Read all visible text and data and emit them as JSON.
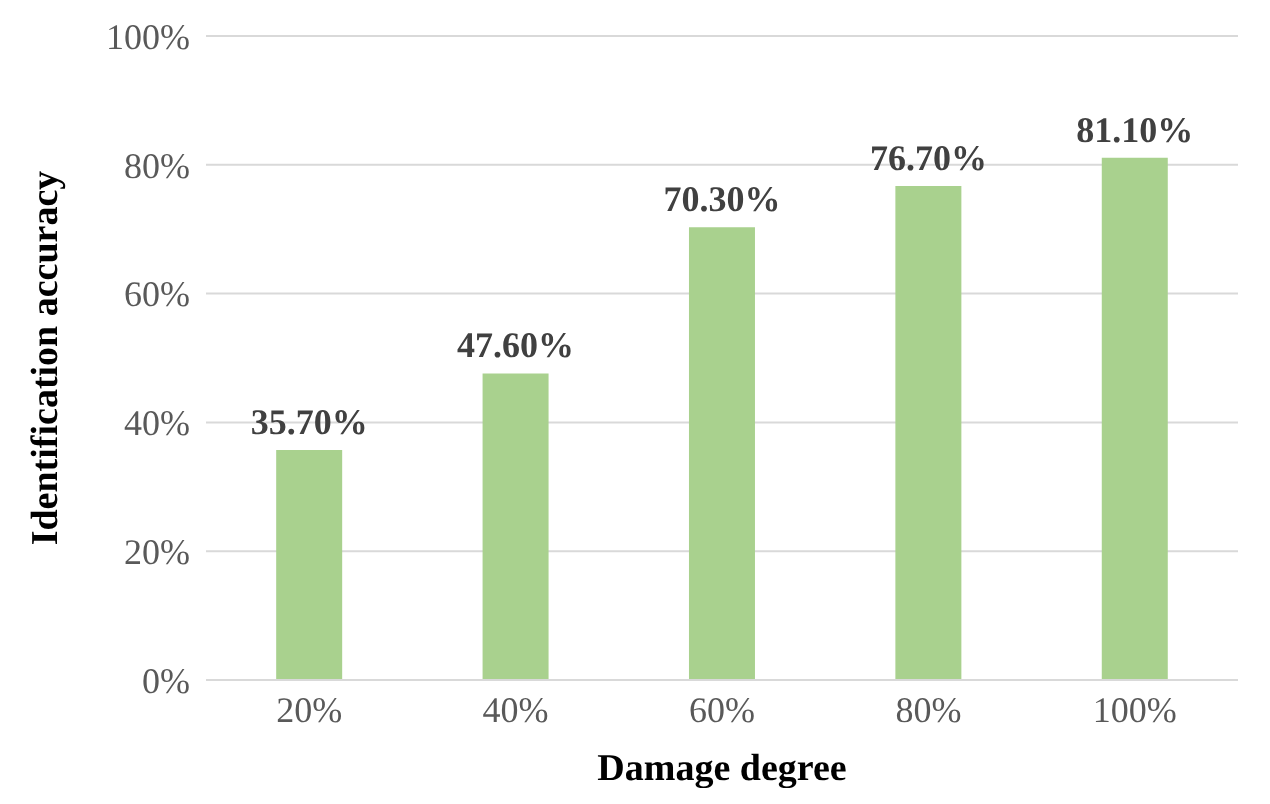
{
  "chart_data": {
    "type": "bar",
    "xlabel": "Damage degree",
    "ylabel": "Identification accuracy",
    "categories": [
      "20%",
      "40%",
      "60%",
      "80%",
      "100%"
    ],
    "values": [
      35.7,
      47.6,
      70.3,
      76.7,
      81.1
    ],
    "value_labels": [
      "35.70%",
      "47.60%",
      "70.30%",
      "76.70%",
      "81.10%"
    ],
    "color": "#a9d18e",
    "ylim": [
      0,
      100
    ],
    "yticks": [
      {
        "value": 0,
        "label": "0%"
      },
      {
        "value": 20,
        "label": "20%"
      },
      {
        "value": 40,
        "label": "40%"
      },
      {
        "value": 60,
        "label": "60%"
      },
      {
        "value": 80,
        "label": "80%"
      },
      {
        "value": 100,
        "label": "100%"
      }
    ],
    "grid": "y"
  }
}
